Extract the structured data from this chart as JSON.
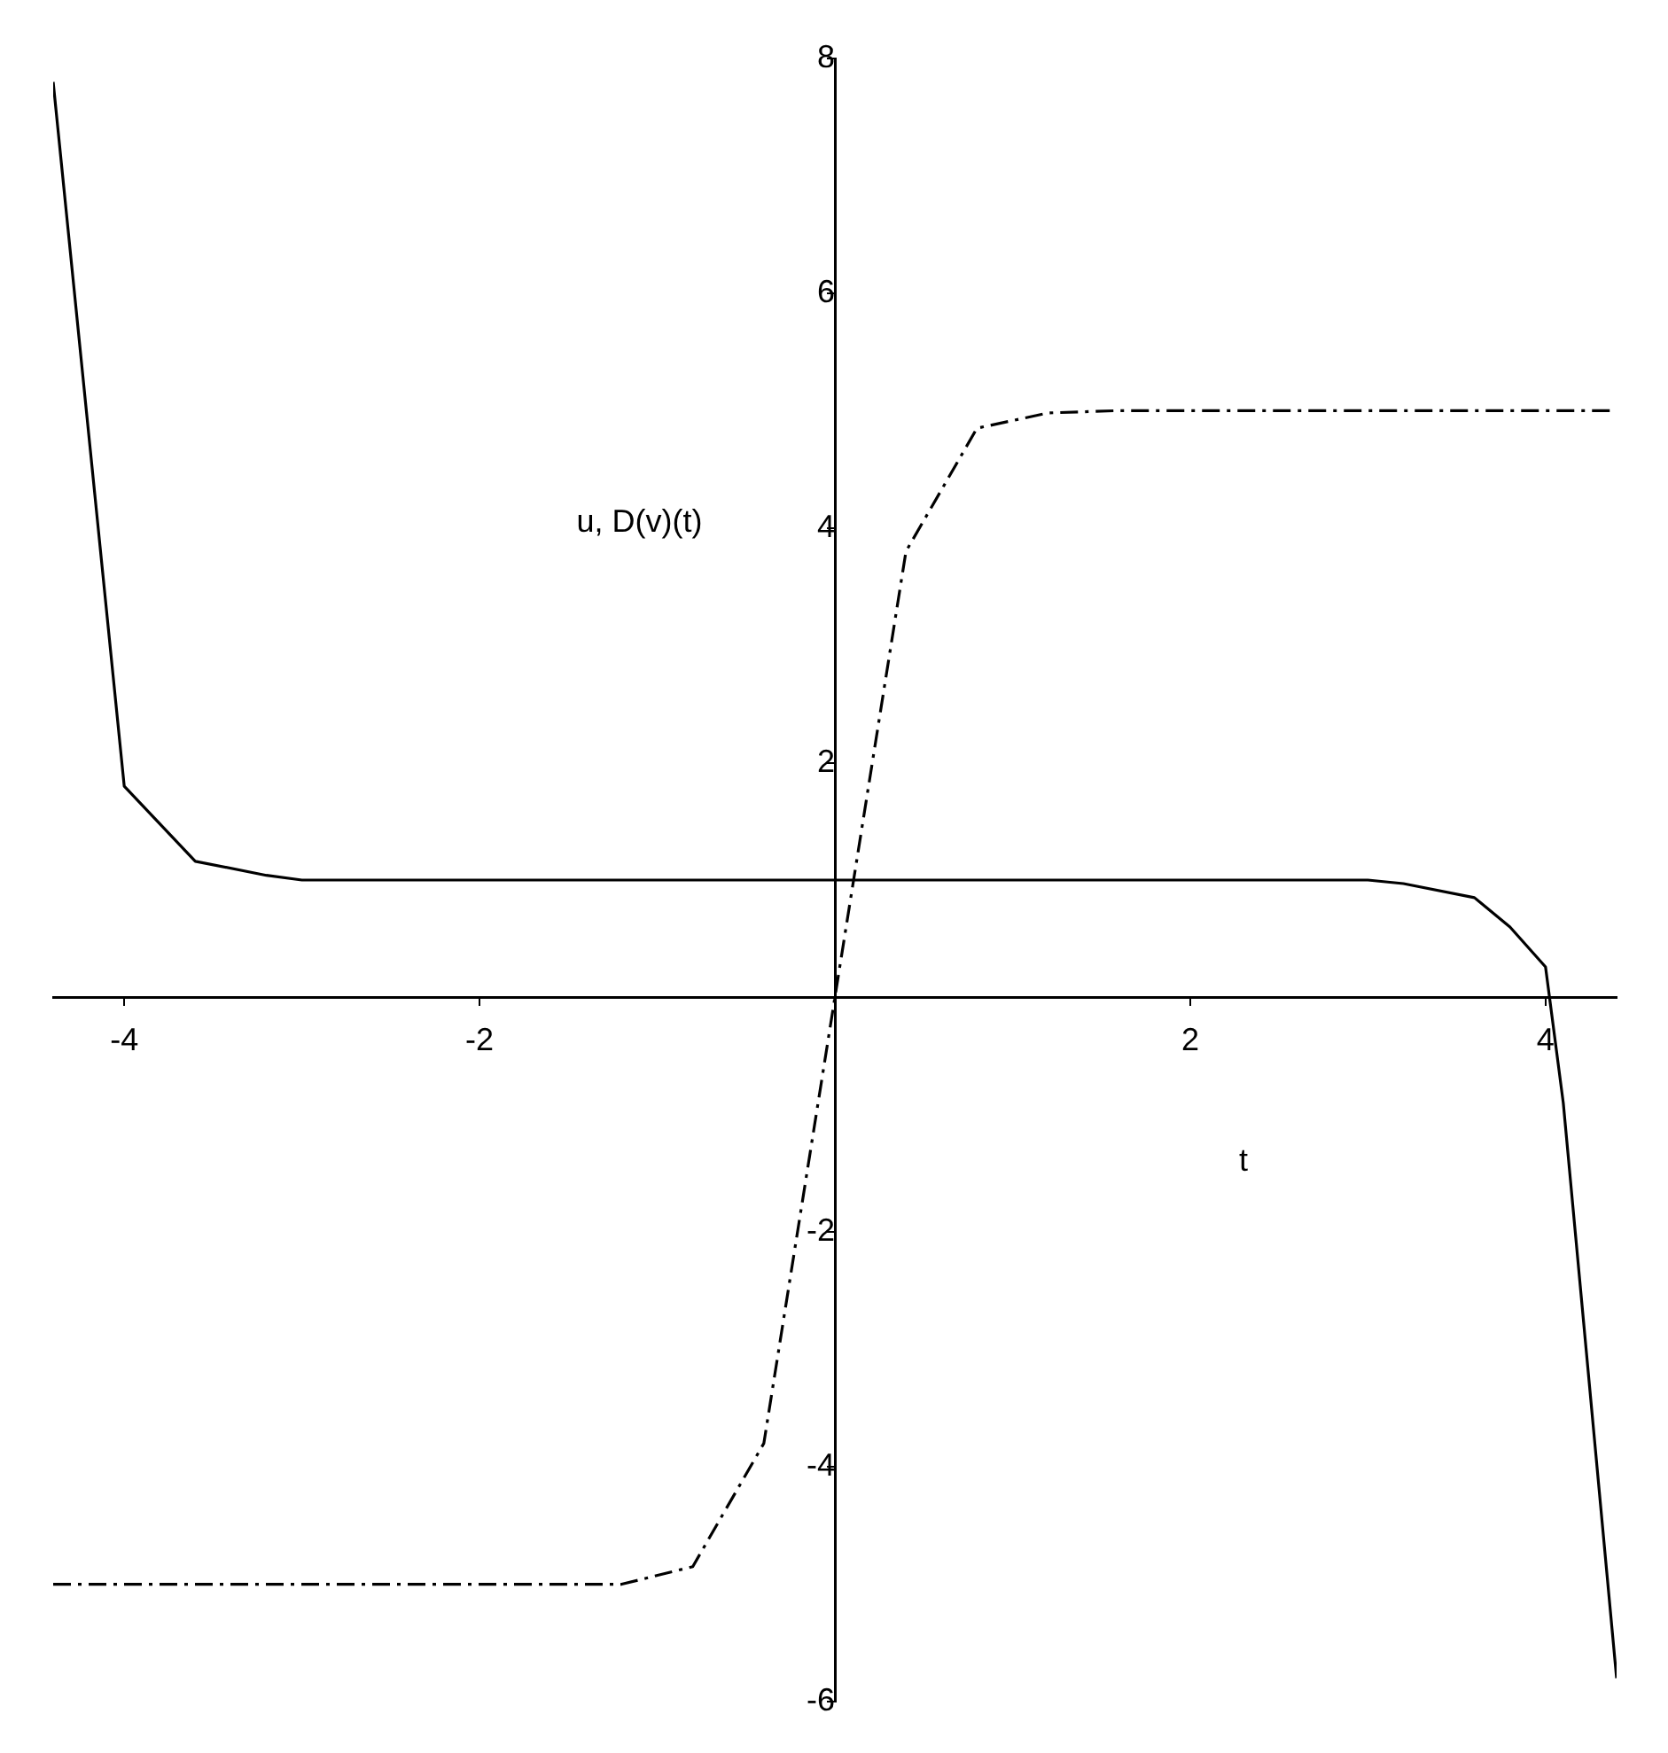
{
  "chart_data": {
    "type": "line",
    "xlabel": "t",
    "ylabel": "u, D(v)(t)",
    "xlim": [
      -4.4,
      4.4
    ],
    "ylim": [
      -6,
      8
    ],
    "xticks": [
      -4,
      -2,
      2,
      4
    ],
    "yticks": [
      -6,
      -4,
      -2,
      2,
      4,
      6,
      8
    ],
    "grid": false,
    "legend": false,
    "marker": "none",
    "series": [
      {
        "color": "#000000",
        "line_style": "solid",
        "x": [
          -4.4,
          -4.0,
          -3.6,
          -3.2,
          -3.0,
          -2.0,
          0,
          2.0,
          3.0,
          3.2,
          3.6,
          3.8,
          4.0,
          4.1,
          4.4
        ],
        "values": [
          7.8,
          1.8,
          1.16,
          1.04,
          1.0,
          1.0,
          1.0,
          1.0,
          1.0,
          0.97,
          0.85,
          0.6,
          0.26,
          -0.9,
          -5.8
        ]
      },
      {
        "color": "#000000",
        "line_style": "dashed",
        "x": [
          -4.4,
          -2.0,
          -1.2,
          -0.8,
          -0.4,
          0,
          0.4,
          0.8,
          1.2,
          1.6,
          2.0,
          4.4
        ],
        "values": [
          -5.0,
          -5.0,
          -5.0,
          -4.85,
          -3.8,
          0,
          3.8,
          4.85,
          4.98,
          5.0,
          5.0,
          5.0
        ]
      }
    ]
  }
}
